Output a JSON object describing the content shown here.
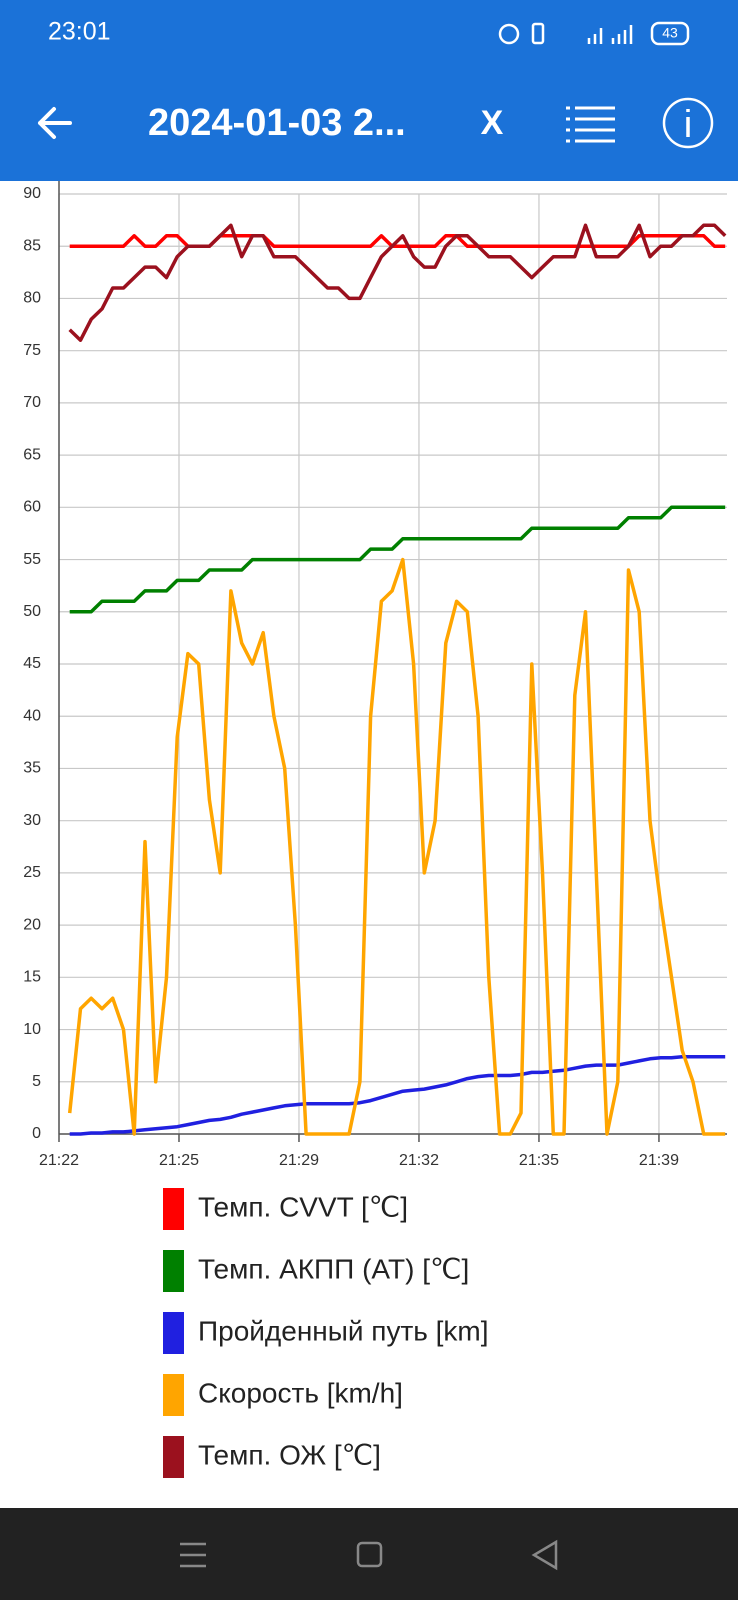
{
  "status_bar": {
    "time": "23:01",
    "battery": "43"
  },
  "app_bar": {
    "title": "2024-01-03 2...",
    "close": "X"
  },
  "chart_data": {
    "type": "line",
    "grid": true,
    "legend": "bottom",
    "x": [
      1282.6,
      1282.9,
      1283.2,
      1283.5,
      1283.8,
      1284.1,
      1284.4,
      1284.7,
      1285.0,
      1285.3,
      1285.6,
      1285.9,
      1286.2,
      1286.5,
      1286.8,
      1287.1,
      1287.4,
      1287.7,
      1288.0,
      1288.3,
      1288.6,
      1288.9,
      1289.2,
      1289.5,
      1289.8,
      1290.1,
      1290.4,
      1290.7,
      1291.0,
      1291.3,
      1291.6,
      1291.9,
      1292.2,
      1292.5,
      1292.8,
      1293.1,
      1293.4,
      1293.7,
      1294.0,
      1294.3,
      1294.6,
      1294.9,
      1295.2,
      1295.5,
      1295.8,
      1296.1,
      1296.4,
      1296.7,
      1297.0,
      1297.3,
      1297.6,
      1297.9,
      1298.2,
      1298.5,
      1298.8,
      1299.1,
      1299.4,
      1299.7,
      1300.0,
      1300.3,
      1300.6,
      1300.9
    ],
    "xlim": [
      1282.3,
      1300.95
    ],
    "xticks": [
      {
        "value": 1282.3,
        "label": "21:22"
      },
      {
        "value": 1285.65,
        "label": "21:25"
      },
      {
        "value": 1289.0,
        "label": "21:29"
      },
      {
        "value": 1292.35,
        "label": "21:32"
      },
      {
        "value": 1295.7,
        "label": "21:35"
      },
      {
        "value": 1299.05,
        "label": "21:39"
      }
    ],
    "ylim": [
      0,
      90
    ],
    "yticks": [
      0,
      5,
      10,
      15,
      20,
      25,
      30,
      35,
      40,
      45,
      50,
      55,
      60,
      65,
      70,
      75,
      80,
      85,
      90
    ],
    "series": [
      {
        "name": "Темп. CVVT [℃]",
        "color": "#ff0000",
        "values": [
          85,
          85,
          85,
          85,
          85,
          85,
          86,
          85,
          85,
          86,
          86,
          85,
          85,
          85,
          86,
          86,
          86,
          86,
          86,
          85,
          85,
          85,
          85,
          85,
          85,
          85,
          85,
          85,
          85,
          86,
          85,
          85,
          85,
          85,
          85,
          86,
          86,
          85,
          85,
          85,
          85,
          85,
          85,
          85,
          85,
          85,
          85,
          85,
          85,
          85,
          85,
          85,
          85,
          86,
          86,
          86,
          86,
          86,
          86,
          86,
          85,
          85
        ]
      },
      {
        "name": "Темп. АКПП (AT) [℃]",
        "color": "#008000",
        "values": [
          50,
          50,
          50,
          51,
          51,
          51,
          51,
          52,
          52,
          52,
          53,
          53,
          53,
          54,
          54,
          54,
          54,
          55,
          55,
          55,
          55,
          55,
          55,
          55,
          55,
          55,
          55,
          55,
          56,
          56,
          56,
          57,
          57,
          57,
          57,
          57,
          57,
          57,
          57,
          57,
          57,
          57,
          57,
          58,
          58,
          58,
          58,
          58,
          58,
          58,
          58,
          58,
          59,
          59,
          59,
          59,
          60,
          60,
          60,
          60,
          60,
          60
        ]
      },
      {
        "name": "Пройденный путь [km]",
        "color": "#2020e0",
        "values": [
          0,
          0,
          0.1,
          0.1,
          0.2,
          0.2,
          0.3,
          0.4,
          0.5,
          0.6,
          0.7,
          0.9,
          1.1,
          1.3,
          1.4,
          1.6,
          1.9,
          2.1,
          2.3,
          2.5,
          2.7,
          2.8,
          2.9,
          2.9,
          2.9,
          2.9,
          2.9,
          3.0,
          3.2,
          3.5,
          3.8,
          4.1,
          4.2,
          4.3,
          4.5,
          4.7,
          5.0,
          5.3,
          5.5,
          5.6,
          5.6,
          5.6,
          5.7,
          5.9,
          5.9,
          6.0,
          6.1,
          6.3,
          6.5,
          6.6,
          6.6,
          6.6,
          6.8,
          7.0,
          7.2,
          7.3,
          7.3,
          7.4,
          7.4,
          7.4,
          7.4,
          7.4
        ]
      },
      {
        "name": "Скорость [km/h]",
        "color": "#ffa500",
        "values": [
          2,
          12,
          13,
          12,
          13,
          10,
          0,
          28,
          5,
          15,
          38,
          46,
          45,
          32,
          25,
          52,
          47,
          45,
          48,
          40,
          35,
          20,
          0,
          0,
          0,
          0,
          0,
          5,
          40,
          51,
          52,
          55,
          45,
          25,
          30,
          47,
          51,
          50,
          40,
          15,
          0,
          0,
          2,
          45,
          25,
          0,
          0,
          42,
          50,
          25,
          0,
          5,
          54,
          50,
          30,
          22,
          15,
          8,
          5,
          0,
          0,
          0
        ]
      },
      {
        "name": "Темп. ОЖ [℃]",
        "color": "#9b111e",
        "values": [
          77,
          76,
          78,
          79,
          81,
          81,
          82,
          83,
          83,
          82,
          84,
          85,
          85,
          85,
          86,
          87,
          84,
          86,
          86,
          84,
          84,
          84,
          83,
          82,
          81,
          81,
          80,
          80,
          82,
          84,
          85,
          86,
          84,
          83,
          83,
          85,
          86,
          86,
          85,
          84,
          84,
          84,
          83,
          82,
          83,
          84,
          84,
          84,
          87,
          84,
          84,
          84,
          85,
          87,
          84,
          85,
          85,
          86,
          86,
          87,
          87,
          86
        ]
      }
    ]
  }
}
